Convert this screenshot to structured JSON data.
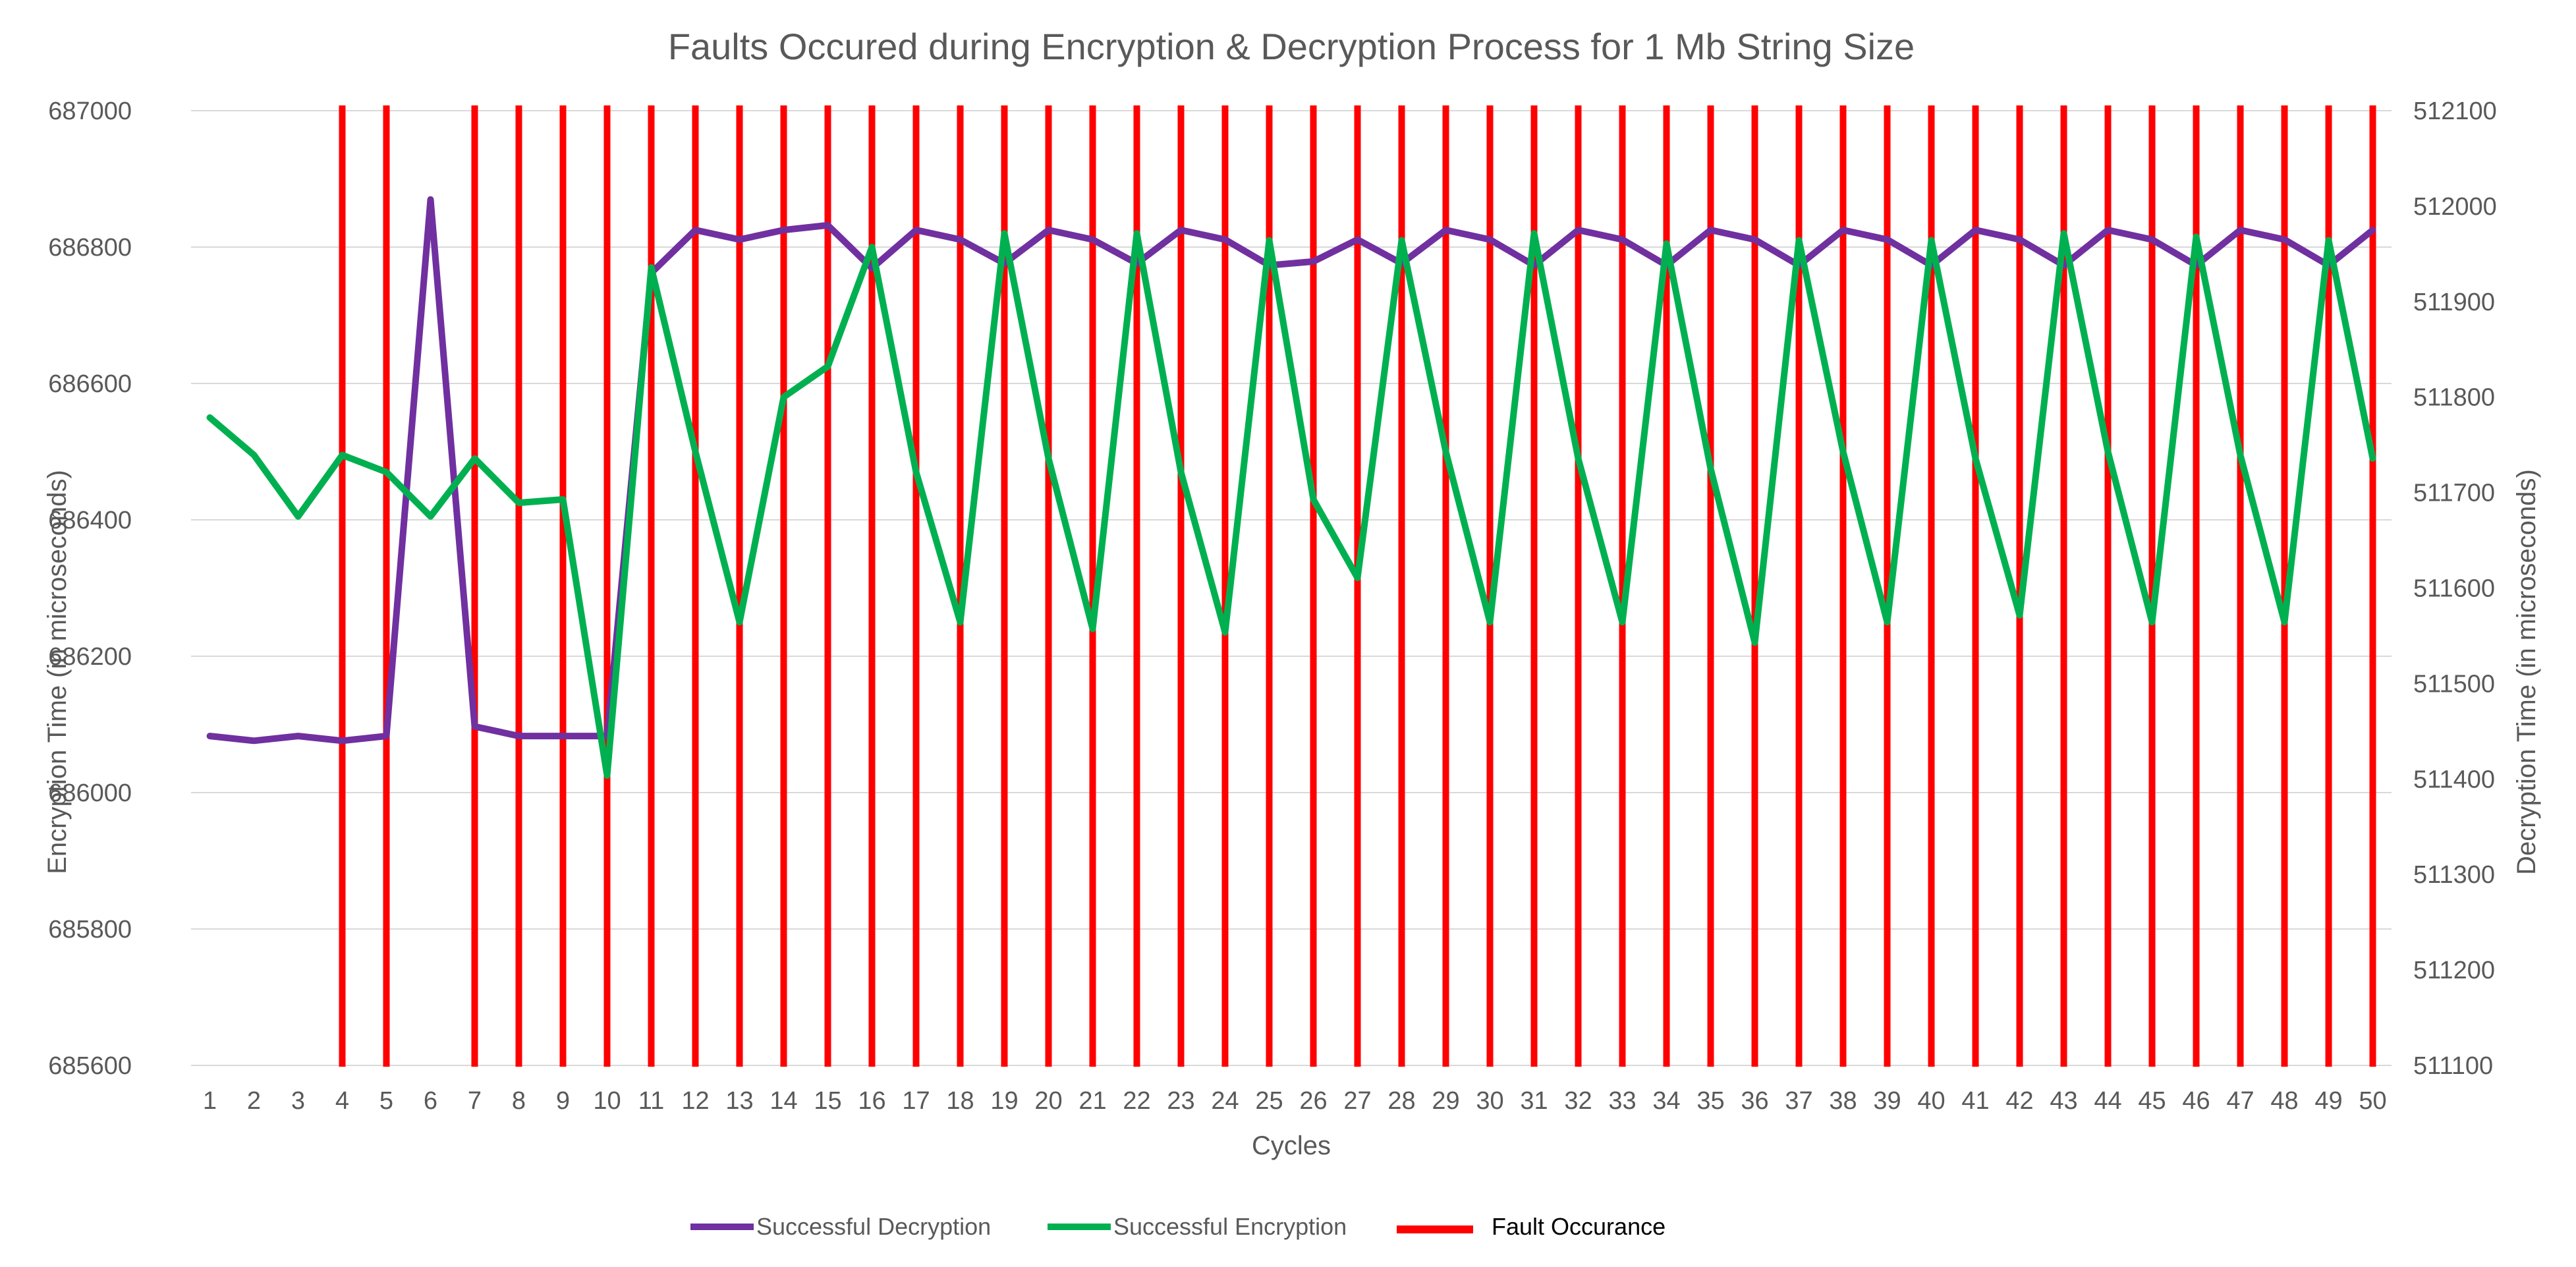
{
  "chart_data": {
    "type": "line",
    "title": "Faults Occured during Encryption & Decryption Process for 1 Mb String Size",
    "xlabel": "Cycles",
    "ylabel_left": "Encryption Time (in microseconds)",
    "ylabel_right": "Decryption Time (in microseconds)",
    "categories": [
      1,
      2,
      3,
      4,
      5,
      6,
      7,
      8,
      9,
      10,
      11,
      12,
      13,
      14,
      15,
      16,
      17,
      18,
      19,
      20,
      21,
      22,
      23,
      24,
      25,
      26,
      27,
      28,
      29,
      30,
      31,
      32,
      33,
      34,
      35,
      36,
      37,
      38,
      39,
      40,
      41,
      42,
      43,
      44,
      45,
      46,
      47,
      48,
      49,
      50
    ],
    "ylim_left": [
      685600,
      687000
    ],
    "yticks_left": [
      685600,
      685800,
      686000,
      686200,
      686400,
      686600,
      686800,
      687000
    ],
    "ylim_right": [
      511100,
      512100
    ],
    "yticks_right": [
      511100,
      511200,
      511300,
      511400,
      511500,
      511600,
      511700,
      511800,
      511900,
      512000,
      512100
    ],
    "grid": true,
    "legend_position": "bottom",
    "series": [
      {
        "name": "Successful Decryption",
        "axis": "right",
        "color": "#7030a0",
        "values": [
          511445,
          511440,
          511445,
          511440,
          511445,
          512007,
          511455,
          511445,
          511445,
          511445,
          511930,
          511975,
          511965,
          511975,
          511980,
          511935,
          511975,
          511965,
          511940,
          511975,
          511965,
          511940,
          511975,
          511965,
          511938,
          511942,
          511965,
          511940,
          511975,
          511965,
          511938,
          511975,
          511965,
          511938,
          511975,
          511965,
          511938,
          511975,
          511965,
          511938,
          511975,
          511965,
          511938,
          511975,
          511965,
          511938,
          511975,
          511965,
          511938,
          511975
        ]
      },
      {
        "name": "Successful Encryption",
        "axis": "left",
        "color": "#00b050",
        "values": [
          686550,
          686495,
          686405,
          686495,
          686470,
          686405,
          686490,
          686425,
          686430,
          686025,
          686770,
          686500,
          686250,
          686580,
          686625,
          686800,
          686470,
          686250,
          686820,
          686490,
          686240,
          686820,
          686470,
          686235,
          686810,
          686430,
          686315,
          686810,
          686500,
          686250,
          686820,
          686490,
          686250,
          686805,
          686475,
          686220,
          686810,
          686500,
          686250,
          686810,
          686490,
          686260,
          686820,
          686500,
          686250,
          686815,
          686495,
          686250,
          686810,
          686490
        ]
      }
    ],
    "fault_series": {
      "name": "Fault Occurance",
      "color": "#ff0000",
      "cycles": [
        4,
        5,
        7,
        8,
        9,
        10,
        11,
        12,
        13,
        14,
        15,
        16,
        17,
        18,
        19,
        20,
        21,
        22,
        23,
        24,
        25,
        26,
        27,
        28,
        29,
        30,
        31,
        32,
        33,
        34,
        35,
        36,
        37,
        38,
        39,
        40,
        41,
        42,
        43,
        44,
        45,
        46,
        47,
        48,
        49,
        50
      ]
    }
  }
}
